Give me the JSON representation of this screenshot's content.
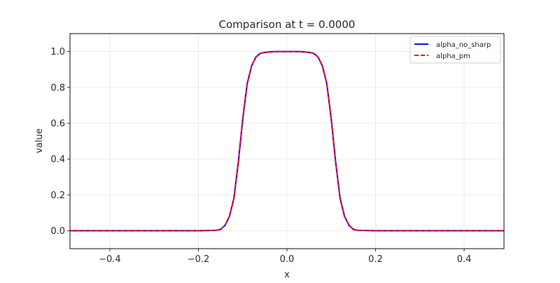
{
  "chart_data": {
    "type": "line",
    "title": "Comparison at t = 0.0000",
    "xlabel": "x",
    "ylabel": "value",
    "xlim": [
      -0.49,
      0.49
    ],
    "ylim": [
      -0.1,
      1.1
    ],
    "xticks": [
      -0.4,
      -0.2,
      0.0,
      0.2,
      0.4
    ],
    "xtick_labels": [
      "−0.4",
      "−0.2",
      "0.0",
      "0.2",
      "0.4"
    ],
    "yticks": [
      0.0,
      0.2,
      0.4,
      0.6,
      0.8,
      1.0
    ],
    "ytick_labels": [
      "0.0",
      "0.2",
      "0.4",
      "0.6",
      "0.8",
      "1.0"
    ],
    "grid": true,
    "legend_position": "upper right",
    "series": [
      {
        "name": "alpha_no_sharp",
        "color": "#0000ff",
        "style": "solid"
      },
      {
        "name": "alpha_pm",
        "color": "#ff0000",
        "style": "dashed"
      }
    ],
    "x": [
      -0.49,
      -0.2,
      -0.16,
      -0.15,
      -0.14,
      -0.13,
      -0.12,
      -0.11,
      -0.1,
      -0.09,
      -0.08,
      -0.07,
      -0.06,
      -0.05,
      -0.04,
      -0.03,
      -0.02,
      0.0,
      0.02,
      0.03,
      0.04,
      0.05,
      0.06,
      0.07,
      0.08,
      0.09,
      0.1,
      0.11,
      0.12,
      0.13,
      0.14,
      0.15,
      0.16,
      0.2,
      0.49
    ],
    "values": [
      0.0,
      0.0,
      0.002,
      0.008,
      0.03,
      0.08,
      0.18,
      0.38,
      0.62,
      0.82,
      0.92,
      0.97,
      0.99,
      0.995,
      0.998,
      0.999,
      1.0,
      1.0,
      1.0,
      0.999,
      0.998,
      0.995,
      0.99,
      0.97,
      0.92,
      0.82,
      0.62,
      0.38,
      0.18,
      0.08,
      0.03,
      0.008,
      0.002,
      0.0,
      0.0
    ]
  },
  "legend": {
    "items": [
      {
        "label": "alpha_no_sharp"
      },
      {
        "label": "alpha_pm"
      }
    ]
  }
}
